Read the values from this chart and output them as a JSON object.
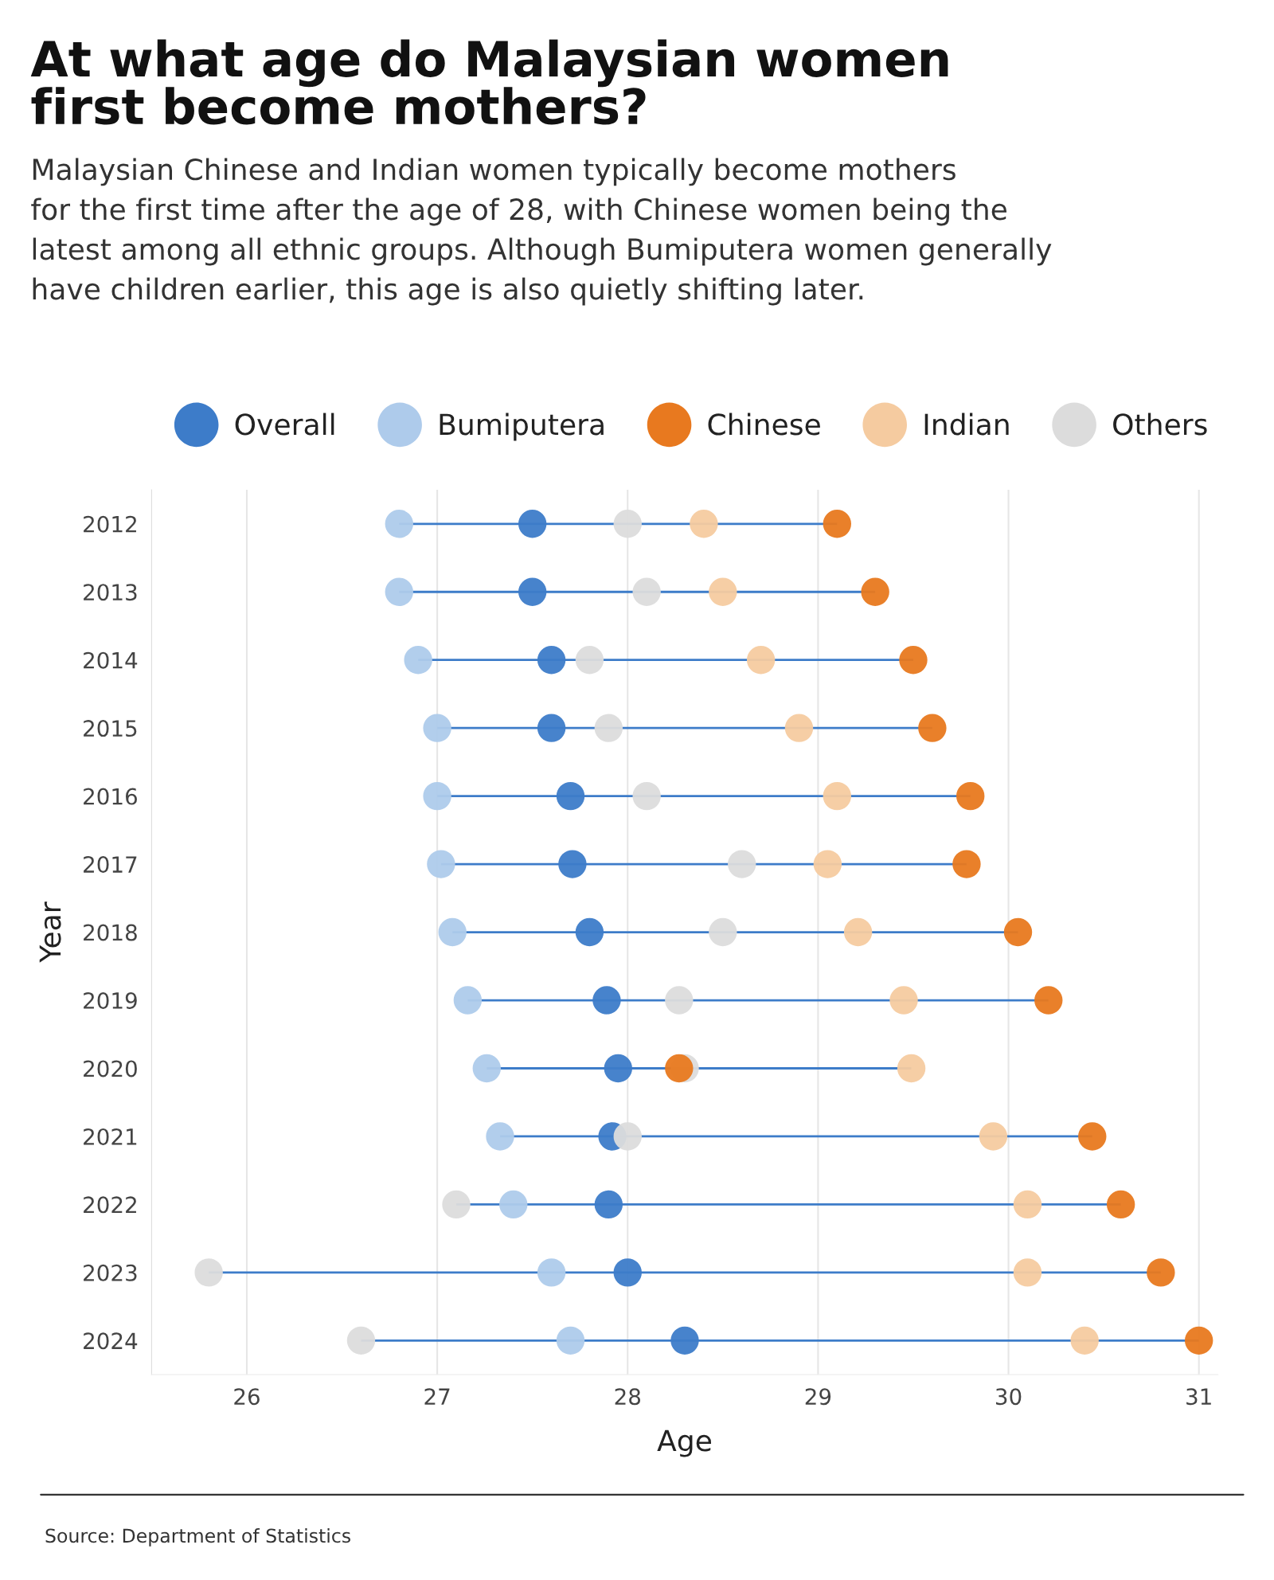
{
  "chart_data": {
    "type": "scatter",
    "title": "At what age do Malaysian women\nfirst become mothers?",
    "subtitle": "Malaysian Chinese and Indian women typically become mothers\nfor the first time after the age of 28, with Chinese women being the\nlatest among all ethnic groups. Although Bumiputera women generally\nhave children earlier, this age is also quietly shifting later.",
    "xlabel": "Age",
    "ylabel": "Year",
    "categories": [
      "2012",
      "2013",
      "2014",
      "2015",
      "2016",
      "2017",
      "2018",
      "2019",
      "2020",
      "2021",
      "2022",
      "2023",
      "2024"
    ],
    "orientation": "horizontal",
    "series": [
      {
        "name": "Overall",
        "color": "#3d7cc9",
        "values": [
          27.5,
          27.5,
          27.6,
          27.6,
          27.7,
          27.71,
          27.8,
          27.89,
          27.95,
          27.92,
          27.9,
          28.0,
          28.3
        ]
      },
      {
        "name": "Bumiputera",
        "color": "#aecbeb",
        "values": [
          26.8,
          26.8,
          26.9,
          27.0,
          27.0,
          27.02,
          27.08,
          27.16,
          27.26,
          27.33,
          27.4,
          27.6,
          27.7
        ]
      },
      {
        "name": "Chinese",
        "color": "#e8791f",
        "values": [
          29.1,
          29.3,
          29.5,
          29.6,
          29.8,
          29.78,
          30.05,
          30.21,
          28.27,
          30.44,
          30.59,
          30.8,
          31.0
        ]
      },
      {
        "name": "Indian",
        "color": "#f5cba0",
        "values": [
          28.4,
          28.5,
          28.7,
          28.9,
          29.1,
          29.05,
          29.21,
          29.45,
          29.49,
          29.92,
          30.1,
          30.1,
          30.4
        ]
      },
      {
        "name": "Others",
        "color": "#dcdcdc",
        "values": [
          28.0,
          28.1,
          27.8,
          27.9,
          28.1,
          28.6,
          28.5,
          28.27,
          28.3,
          28.0,
          27.1,
          25.8,
          26.6
        ]
      }
    ],
    "xlim": [
      25.5,
      31.1
    ],
    "xticks": [
      26,
      27,
      28,
      29,
      30,
      31
    ],
    "grid": "x",
    "legend": "top",
    "marker": "circle",
    "annotations": [
      "Source: Department of Statistics"
    ]
  }
}
